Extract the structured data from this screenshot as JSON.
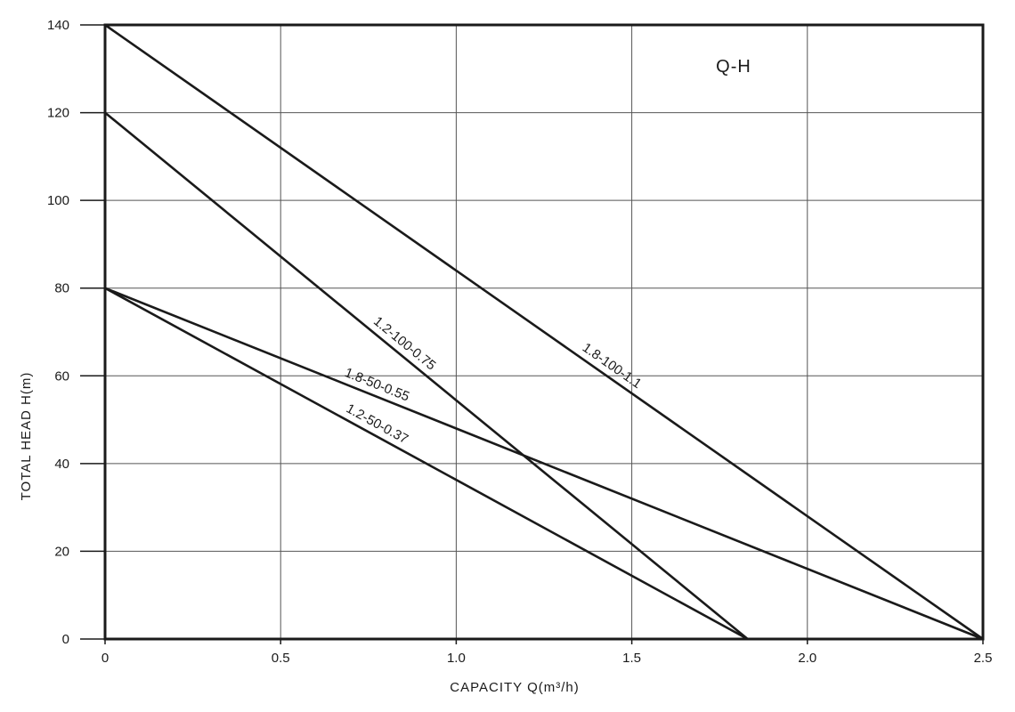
{
  "chart_data": {
    "type": "line",
    "title": "Q-H",
    "xlabel": "CAPACITY Q(m³/h)",
    "ylabel": "TOTAL HEAD H(m)",
    "xlim": [
      0,
      2.5
    ],
    "ylim": [
      0,
      140
    ],
    "x_ticks": [
      "0",
      "0.5",
      "1.0",
      "1.5",
      "2.0",
      "2.5"
    ],
    "y_ticks": [
      "0",
      "20",
      "40",
      "60",
      "80",
      "100",
      "120",
      "140"
    ],
    "grid": true,
    "series": [
      {
        "name": "1.8-100-1.1",
        "x": [
          0,
          2.5
        ],
        "y": [
          140,
          0
        ]
      },
      {
        "name": "1.2-100-0.75",
        "x": [
          0,
          1.83
        ],
        "y": [
          120,
          0
        ]
      },
      {
        "name": "1.8-50-0.55",
        "x": [
          0,
          2.5
        ],
        "y": [
          80,
          0
        ]
      },
      {
        "name": "1.2-50-0.37",
        "x": [
          0,
          1.83
        ],
        "y": [
          80,
          0
        ]
      }
    ]
  }
}
